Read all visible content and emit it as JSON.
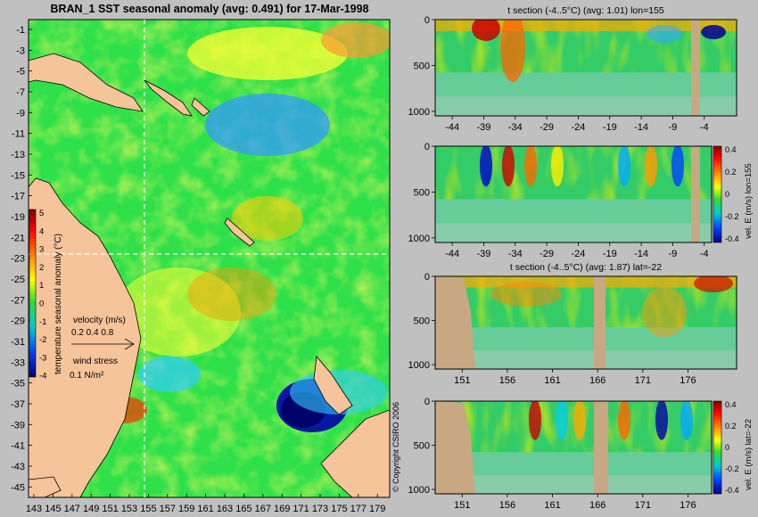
{
  "map": {
    "title": "BRAN_1 SST seasonal anomaly (avg: 0.491) for 17-Mar-1998",
    "lat_labels": [
      "-1",
      "-3",
      "-5",
      "-7",
      "-9",
      "-11",
      "-13",
      "-15",
      "-17",
      "-19",
      "-21",
      "-23",
      "-25",
      "-27",
      "-29",
      "-31",
      "-33",
      "-35",
      "-37",
      "-39",
      "-41",
      "-43",
      "-45"
    ],
    "lon_labels": [
      "143",
      "145",
      "147",
      "149",
      "151",
      "153",
      "155",
      "157",
      "159",
      "161",
      "163",
      "165",
      "167",
      "169",
      "171",
      "173",
      "175",
      "177",
      "179"
    ],
    "colorbar_ticks": [
      "5",
      "4",
      "3",
      "2",
      "1",
      "0",
      "-1",
      "-2",
      "-3",
      "-4"
    ],
    "colorbar_label": "temperature seasonal anomaly (°C)",
    "velocity_label": "velocity (m/s)",
    "velocity_scale": "0.2 0.4 0.8",
    "wind_label": "wind stress",
    "wind_scale": "0.1 N/m²",
    "copyright": "© Copyright CSIRO 2006",
    "section_lon": 155,
    "section_lat": -22
  },
  "panels": [
    {
      "title": "t section (-4..5°C) (avg: 1.01) lon=155",
      "x_ticks": [
        "-44",
        "-39",
        "-34",
        "-29",
        "-24",
        "-19",
        "-14",
        "-9",
        "-4"
      ],
      "y_ticks": [
        "0",
        "500",
        "1000"
      ]
    },
    {
      "title": "",
      "x_ticks": [
        "-44",
        "-39",
        "-34",
        "-29",
        "-24",
        "-19",
        "-14",
        "-9",
        "-4"
      ],
      "y_ticks": [
        "0",
        "500",
        "1000"
      ],
      "cbar_label": "vel. E (m/s) lon=155",
      "cbar_ticks": [
        "0.4",
        "0.2",
        "0",
        "-0.2",
        "-0.4"
      ]
    },
    {
      "title": "t section (-4..5°C) (avg: 1.87) lat=-22",
      "x_ticks": [
        "151",
        "156",
        "161",
        "166",
        "171",
        "176"
      ],
      "y_ticks": [
        "0",
        "500",
        "1000"
      ]
    },
    {
      "title": "",
      "x_ticks": [
        "151",
        "156",
        "161",
        "166",
        "171",
        "176"
      ],
      "y_ticks": [
        "0",
        "500",
        "1000"
      ],
      "cbar_label": "vel. E (m/s) lat=-22",
      "cbar_ticks": [
        "0.4",
        "0.2",
        "0",
        "-0.2",
        "-0.4"
      ]
    }
  ],
  "chart_data": [
    {
      "type": "heatmap",
      "title": "BRAN_1 SST seasonal anomaly (avg: 0.491) for 17-Mar-1998",
      "x": [
        143,
        145,
        147,
        149,
        151,
        153,
        155,
        157,
        159,
        161,
        163,
        165,
        167,
        169,
        171,
        173,
        175,
        177,
        179
      ],
      "y": [
        -1,
        -3,
        -5,
        -7,
        -9,
        -11,
        -13,
        -15,
        -17,
        -19,
        -21,
        -23,
        -25,
        -27,
        -29,
        -31,
        -33,
        -35,
        -37,
        -39,
        -41,
        -43,
        -45
      ],
      "xlim": [
        143,
        180
      ],
      "ylim": [
        -45,
        0
      ],
      "color_range": [
        -4,
        5
      ],
      "units": "°C",
      "avg": 0.491
    },
    {
      "type": "heatmap",
      "title": "t section (-4..5°C) (avg: 1.01) lon=155",
      "xlim": [
        -46,
        0
      ],
      "ylim": [
        1050,
        0
      ],
      "color_range": [
        -4,
        5
      ],
      "avg": 1.01
    },
    {
      "type": "heatmap",
      "title": "",
      "xlim": [
        -46,
        0
      ],
      "ylim": [
        1050,
        0
      ],
      "color_range": [
        -0.4,
        0.4
      ],
      "units": "m/s"
    },
    {
      "type": "heatmap",
      "title": "t section (-4..5°C) (avg: 1.87) lat=-22",
      "xlim": [
        149,
        180
      ],
      "ylim": [
        1050,
        0
      ],
      "color_range": [
        -4,
        5
      ],
      "avg": 1.87
    },
    {
      "type": "heatmap",
      "title": "",
      "xlim": [
        149,
        180
      ],
      "ylim": [
        1050,
        0
      ],
      "color_range": [
        -0.4,
        0.4
      ],
      "units": "m/s"
    }
  ]
}
